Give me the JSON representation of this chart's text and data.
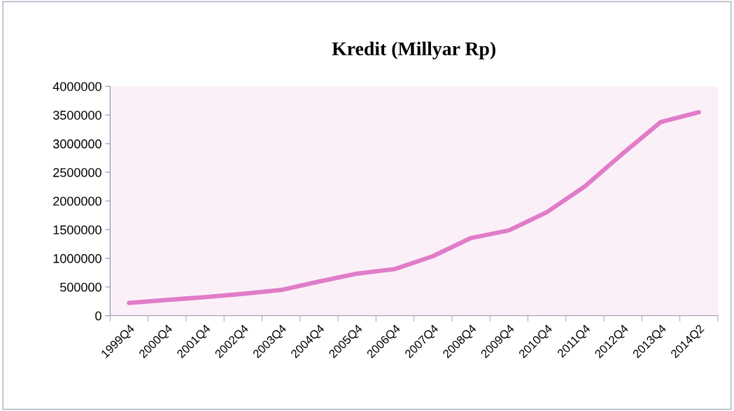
{
  "chart_data": {
    "type": "line",
    "title": "Kredit (Millyar Rp)",
    "categories": [
      "1999Q4",
      "2000Q4",
      "2001Q4",
      "2002Q4",
      "2003Q4",
      "2004Q4",
      "2005Q4",
      "2006Q4",
      "2007Q4",
      "2008Q4",
      "2009Q4",
      "2010Q4",
      "2011Q4",
      "2012Q4",
      "2013Q4",
      "2014Q2"
    ],
    "series": [
      {
        "color": "#e07cc8",
        "values": [
          223000,
          274000,
          323000,
          380000,
          447000,
          594000,
          732000,
          813000,
          1037000,
          1354000,
          1488000,
          1805000,
          2256000,
          2829000,
          3378000,
          3549000
        ]
      }
    ],
    "ylim": [
      0,
      4000000
    ],
    "yticks": [
      0,
      500000,
      1000000,
      1500000,
      2000000,
      2500000,
      3000000,
      3500000,
      4000000
    ],
    "grid": false,
    "legend": false,
    "marker": "none",
    "line_style": "solid"
  }
}
